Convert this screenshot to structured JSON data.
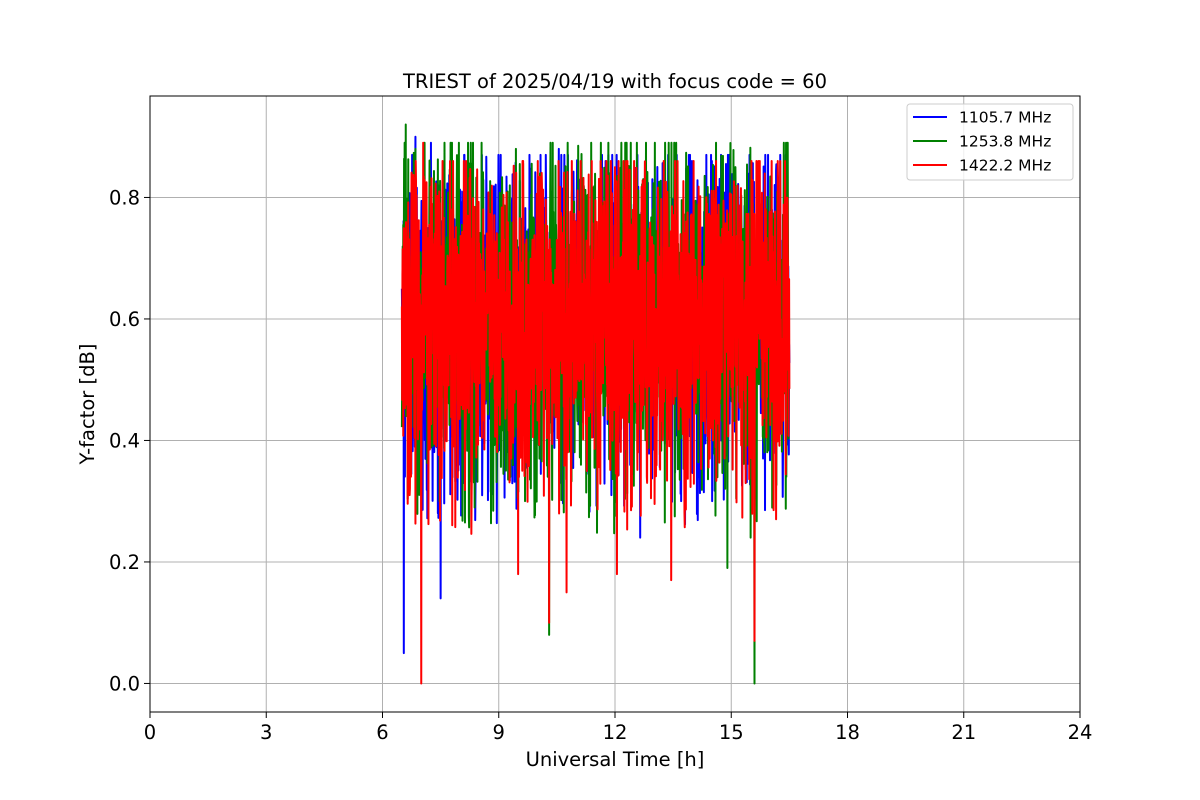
{
  "chart_data": {
    "type": "line",
    "title": "TRIEST of 2025/04/19 with focus code = 60",
    "xlabel": "Universal Time [h]",
    "ylabel": "Y-factor [dB]",
    "xlim": [
      0,
      24
    ],
    "ylim": [
      -0.047,
      0.967
    ],
    "xticks": [
      0,
      3,
      6,
      9,
      12,
      15,
      18,
      21,
      24
    ],
    "xtick_labels": [
      "0",
      "3",
      "6",
      "9",
      "12",
      "15",
      "18",
      "21",
      "24"
    ],
    "yticks": [
      0.0,
      0.2,
      0.4,
      0.6,
      0.8
    ],
    "ytick_labels": [
      "0.0",
      "0.2",
      "0.4",
      "0.6",
      "0.8"
    ],
    "grid": true,
    "legend_position": "top-right",
    "sampling": {
      "x_start": 6.5,
      "x_end": 16.5,
      "points": 1401
    },
    "series": [
      {
        "name": "1105.7 MHz",
        "color": "#0000ff",
        "mean": 0.61,
        "spread": 0.14,
        "min": 0.05,
        "max": 0.9,
        "seed": 11,
        "extremes": [
          [
            6.55,
            0.05
          ],
          [
            7.5,
            0.14
          ],
          [
            6.85,
            0.9
          ],
          [
            7.25,
            0.89
          ],
          [
            10.55,
            0.88
          ],
          [
            14.5,
            0.86
          ],
          [
            12.65,
            0.24
          ],
          [
            8.1,
            0.33
          ]
        ]
      },
      {
        "name": "1253.8 MHz",
        "color": "#008000",
        "mean": 0.61,
        "spread": 0.14,
        "min": 0.0,
        "max": 0.92,
        "seed": 23,
        "extremes": [
          [
            6.6,
            0.92
          ],
          [
            6.85,
            0.88
          ],
          [
            12.8,
            0.89
          ],
          [
            10.3,
            0.08
          ],
          [
            15.6,
            0.0
          ],
          [
            14.9,
            0.19
          ],
          [
            15.5,
            0.24
          ],
          [
            9.3,
            0.34
          ]
        ]
      },
      {
        "name": "1422.2 MHz",
        "color": "#ff0000",
        "mean": 0.61,
        "spread": 0.14,
        "min": 0.0,
        "max": 0.89,
        "seed": 37,
        "extremes": [
          [
            7.0,
            0.0
          ],
          [
            7.05,
            0.89
          ],
          [
            12.05,
            0.18
          ],
          [
            15.6,
            0.07
          ],
          [
            13.45,
            0.17
          ],
          [
            10.3,
            0.1
          ],
          [
            9.5,
            0.18
          ],
          [
            10.75,
            0.15
          ],
          [
            6.7,
            0.31
          ],
          [
            12.0,
            0.85
          ]
        ]
      }
    ]
  }
}
